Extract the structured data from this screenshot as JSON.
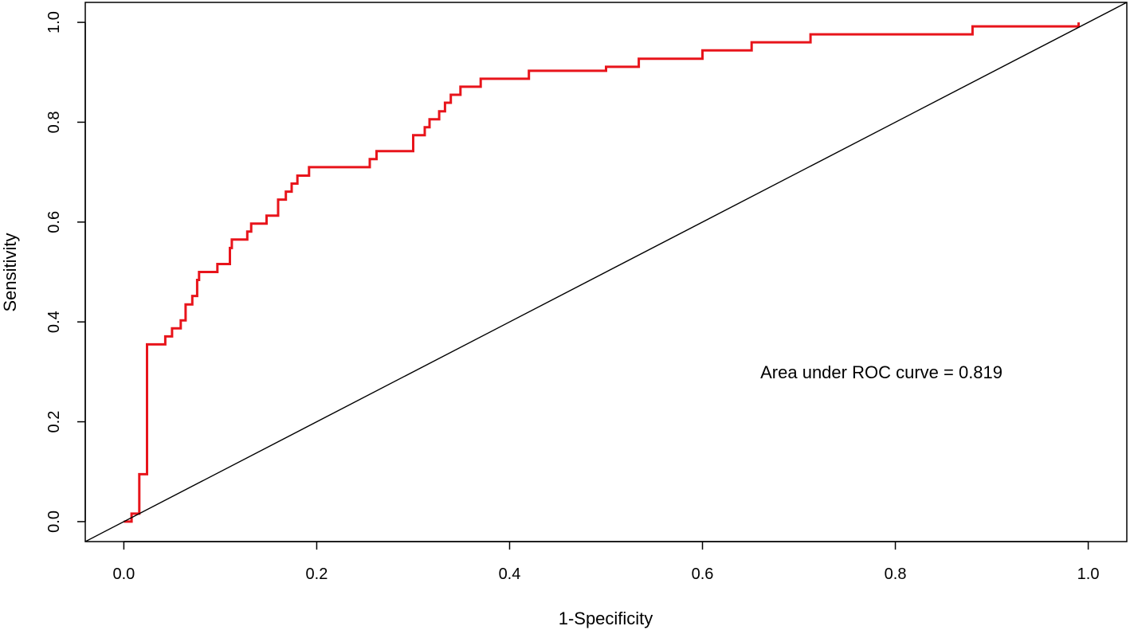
{
  "chart_data": {
    "type": "line",
    "title": "",
    "xlabel": "1-Specificity",
    "ylabel": "Sensitivity",
    "xlim": [
      -0.04,
      1.04
    ],
    "ylim": [
      -0.04,
      1.04
    ],
    "x_ticks": [
      {
        "value": 0.0,
        "label": "0.0"
      },
      {
        "value": 0.2,
        "label": "0.2"
      },
      {
        "value": 0.4,
        "label": "0.4"
      },
      {
        "value": 0.6,
        "label": "0.6"
      },
      {
        "value": 0.8,
        "label": "0.8"
      },
      {
        "value": 1.0,
        "label": "1.0"
      }
    ],
    "y_ticks": [
      {
        "value": 0.0,
        "label": "0.0"
      },
      {
        "value": 0.2,
        "label": "0.2"
      },
      {
        "value": 0.4,
        "label": "0.4"
      },
      {
        "value": 0.6,
        "label": "0.6"
      },
      {
        "value": 0.8,
        "label": "0.8"
      },
      {
        "value": 1.0,
        "label": "1.0"
      }
    ],
    "grid": false,
    "series": [
      {
        "kind": "roc-step",
        "color": "#e8141b",
        "x": [
          0.0,
          0.008,
          0.008,
          0.01,
          0.01,
          0.016,
          0.016,
          0.024,
          0.024,
          0.043,
          0.043,
          0.05,
          0.05,
          0.059,
          0.059,
          0.064,
          0.064,
          0.071,
          0.071,
          0.076,
          0.076,
          0.078,
          0.078,
          0.084,
          0.084,
          0.097,
          0.097,
          0.11,
          0.11,
          0.112,
          0.112,
          0.12,
          0.12,
          0.128,
          0.128,
          0.132,
          0.132,
          0.143,
          0.143,
          0.148,
          0.148,
          0.16,
          0.16,
          0.168,
          0.168,
          0.174,
          0.174,
          0.18,
          0.18,
          0.192,
          0.192,
          0.23,
          0.23,
          0.255,
          0.255,
          0.262,
          0.262,
          0.285,
          0.285,
          0.3,
          0.3,
          0.312,
          0.312,
          0.317,
          0.317,
          0.322,
          0.322,
          0.327,
          0.327,
          0.333,
          0.333,
          0.339,
          0.339,
          0.349,
          0.349,
          0.358,
          0.358,
          0.37,
          0.37,
          0.38,
          0.38,
          0.42,
          0.42,
          0.48,
          0.48,
          0.5,
          0.5,
          0.534,
          0.534,
          0.56,
          0.56,
          0.6,
          0.6,
          0.651,
          0.651,
          0.712,
          0.712,
          0.8,
          0.8,
          0.88,
          0.88,
          0.96,
          0.96,
          0.99,
          0.99
        ],
        "y": [
          0.0,
          0.0,
          0.016,
          0.016,
          0.016,
          0.016,
          0.095,
          0.095,
          0.355,
          0.355,
          0.371,
          0.371,
          0.387,
          0.387,
          0.403,
          0.403,
          0.435,
          0.435,
          0.452,
          0.452,
          0.484,
          0.484,
          0.5,
          0.5,
          0.5,
          0.5,
          0.516,
          0.516,
          0.548,
          0.548,
          0.565,
          0.565,
          0.565,
          0.565,
          0.581,
          0.581,
          0.597,
          0.597,
          0.597,
          0.597,
          0.613,
          0.613,
          0.645,
          0.645,
          0.661,
          0.661,
          0.677,
          0.677,
          0.693,
          0.693,
          0.71,
          0.71,
          0.71,
          0.71,
          0.726,
          0.726,
          0.742,
          0.742,
          0.742,
          0.742,
          0.774,
          0.774,
          0.79,
          0.79,
          0.806,
          0.806,
          0.806,
          0.806,
          0.822,
          0.822,
          0.839,
          0.839,
          0.855,
          0.855,
          0.871,
          0.871,
          0.871,
          0.871,
          0.887,
          0.887,
          0.887,
          0.887,
          0.903,
          0.903,
          0.903,
          0.903,
          0.911,
          0.911,
          0.927,
          0.927,
          0.927,
          0.927,
          0.944,
          0.944,
          0.96,
          0.96,
          0.976,
          0.976,
          0.976,
          0.976,
          0.992,
          0.992,
          0.992,
          0.992,
          1.0
        ]
      },
      {
        "kind": "reference-diagonal",
        "color": "#000000",
        "x": [
          -0.04,
          1.04
        ],
        "y": [
          -0.04,
          1.04
        ]
      }
    ],
    "annotations": [
      {
        "text": "Area under ROC curve = 0.819",
        "x": 0.66,
        "y": 0.3
      }
    ]
  }
}
